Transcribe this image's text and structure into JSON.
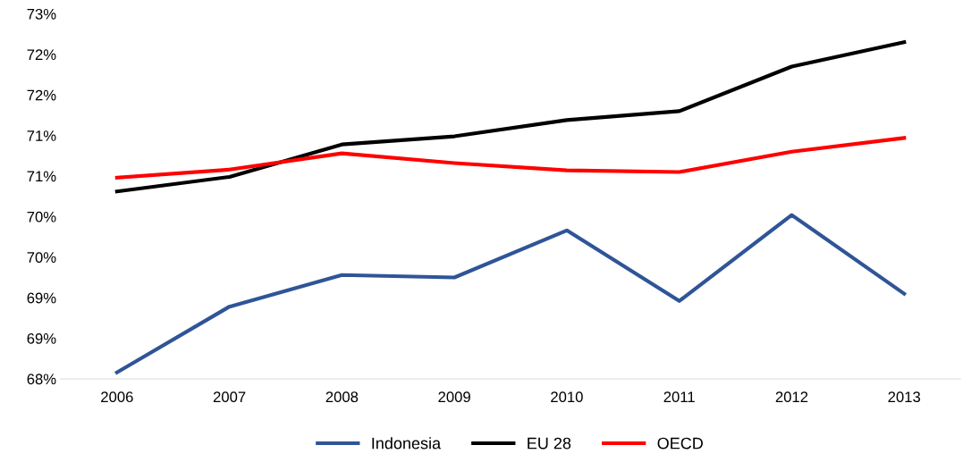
{
  "chart_data": {
    "type": "line",
    "categories": [
      "2006",
      "2007",
      "2008",
      "2009",
      "2010",
      "2011",
      "2012",
      "2013"
    ],
    "series": [
      {
        "name": "Indonesia",
        "color": "#2f5597",
        "values": [
          68.08,
          68.89,
          69.28,
          69.25,
          69.83,
          68.96,
          70.02,
          69.05
        ]
      },
      {
        "name": "EU 28",
        "color": "#000000",
        "values": [
          70.31,
          70.49,
          70.89,
          70.99,
          71.19,
          71.3,
          71.85,
          72.15
        ]
      },
      {
        "name": "OECD",
        "color": "#ff0000",
        "values": [
          70.48,
          70.58,
          70.78,
          70.66,
          70.57,
          70.55,
          70.8,
          70.97
        ]
      }
    ],
    "ylim": [
      68,
      72.5
    ],
    "yticks": [
      {
        "value": 68,
        "label": "68%"
      },
      {
        "value": 68.5,
        "label": "69%"
      },
      {
        "value": 69,
        "label": "69%"
      },
      {
        "value": 69.5,
        "label": "70%"
      },
      {
        "value": 70,
        "label": "70%"
      },
      {
        "value": 70.5,
        "label": "71%"
      },
      {
        "value": 71,
        "label": "71%"
      },
      {
        "value": 71.5,
        "label": "72%"
      },
      {
        "value": 72,
        "label": "72%"
      },
      {
        "value": 72.5,
        "label": "73%"
      }
    ],
    "grid": false,
    "legend": "bottom",
    "marker": "none",
    "line_style": "solid"
  }
}
